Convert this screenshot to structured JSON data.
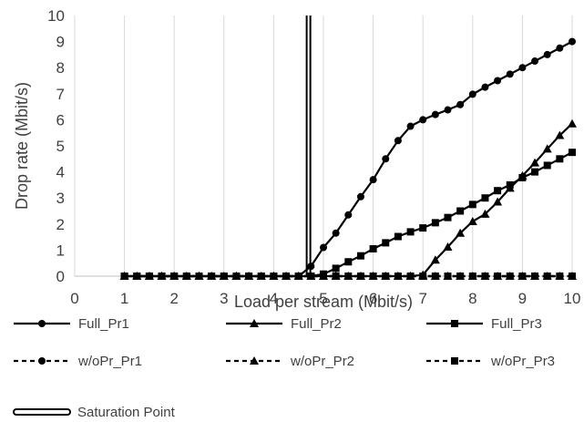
{
  "chart_data": {
    "type": "line",
    "title": "",
    "xlabel": "Load per stream (Mbit/s)",
    "ylabel": "Drop rate (Mbit/s)",
    "xlim": [
      0,
      10
    ],
    "ylim": [
      0,
      10
    ],
    "xticks": [
      "0",
      "1",
      "2",
      "3",
      "4",
      "5",
      "6",
      "7",
      "8",
      "9",
      "10"
    ],
    "yticks": [
      "0",
      "1",
      "2",
      "3",
      "4",
      "5",
      "6",
      "7",
      "8",
      "9",
      "10"
    ],
    "grid": "vertical",
    "legend_position": "bottom",
    "series": [
      {
        "name": "Full_Pr1",
        "marker": "circle",
        "style": "solid",
        "x": [
          1,
          1.25,
          1.5,
          1.75,
          2,
          2.25,
          2.5,
          2.75,
          3,
          3.25,
          3.5,
          3.75,
          4,
          4.25,
          4.5,
          4.75,
          5,
          5.25,
          5.5,
          5.75,
          6,
          6.25,
          6.5,
          6.75,
          7,
          7.25,
          7.5,
          7.75,
          8,
          8.25,
          8.5,
          8.75,
          9,
          9.25,
          9.5,
          9.75,
          10
        ],
        "y": [
          0,
          0,
          0,
          0,
          0,
          0,
          0,
          0,
          0,
          0,
          0,
          0,
          0,
          0,
          0,
          0.38,
          1.1,
          1.65,
          2.35,
          3.05,
          3.7,
          4.5,
          5.2,
          5.75,
          6.0,
          6.2,
          6.38,
          6.58,
          6.98,
          7.25,
          7.5,
          7.75,
          8.0,
          8.25,
          8.5,
          8.75,
          9.0
        ]
      },
      {
        "name": "Full_Pr2",
        "marker": "triangle",
        "style": "solid",
        "x": [
          1,
          1.25,
          1.5,
          1.75,
          2,
          2.25,
          2.5,
          2.75,
          3,
          3.25,
          3.5,
          3.75,
          4,
          4.25,
          4.5,
          4.75,
          5,
          5.25,
          5.5,
          5.75,
          6,
          6.25,
          6.5,
          6.75,
          7,
          7.25,
          7.5,
          7.75,
          8,
          8.25,
          8.5,
          8.75,
          9,
          9.25,
          9.5,
          9.75,
          10
        ],
        "y": [
          0,
          0,
          0,
          0,
          0,
          0,
          0,
          0,
          0,
          0,
          0,
          0,
          0,
          0,
          0,
          0,
          0,
          0,
          0,
          0,
          0,
          0,
          0,
          0,
          0.05,
          0.62,
          1.12,
          1.65,
          2.1,
          2.38,
          2.85,
          3.38,
          3.85,
          4.35,
          4.88,
          5.4,
          5.85
        ]
      },
      {
        "name": "Full_Pr3",
        "marker": "square",
        "style": "solid",
        "x": [
          1,
          1.25,
          1.5,
          1.75,
          2,
          2.25,
          2.5,
          2.75,
          3,
          3.25,
          3.5,
          3.75,
          4,
          4.25,
          4.5,
          4.75,
          5,
          5.25,
          5.5,
          5.75,
          6,
          6.25,
          6.5,
          6.75,
          7,
          7.25,
          7.5,
          7.75,
          8,
          8.25,
          8.5,
          8.75,
          9,
          9.25,
          9.5,
          9.75,
          10
        ],
        "y": [
          0,
          0,
          0,
          0,
          0,
          0,
          0,
          0,
          0,
          0,
          0,
          0,
          0,
          0,
          0,
          0,
          0.08,
          0.3,
          0.55,
          0.78,
          1.05,
          1.28,
          1.52,
          1.7,
          1.85,
          2.05,
          2.25,
          2.5,
          2.75,
          3.0,
          3.28,
          3.5,
          3.78,
          4.0,
          4.25,
          4.5,
          4.75
        ]
      },
      {
        "name": "w/oPr_Pr1",
        "marker": "circle",
        "style": "dashed",
        "x": [
          1,
          1.25,
          1.5,
          1.75,
          2,
          2.25,
          2.5,
          2.75,
          3,
          3.25,
          3.5,
          3.75,
          4,
          4.25,
          4.5,
          4.75,
          5,
          5.25,
          5.5,
          5.75,
          6,
          6.25,
          6.5,
          6.75,
          7,
          7.25,
          7.5,
          7.75,
          8,
          8.25,
          8.5,
          8.75,
          9,
          9.25,
          9.5,
          9.75,
          10
        ],
        "y": [
          0,
          0,
          0,
          0,
          0,
          0,
          0,
          0,
          0,
          0,
          0,
          0,
          0,
          0,
          0,
          0,
          0,
          0,
          0,
          0,
          0,
          0,
          0,
          0,
          0,
          0,
          0,
          0,
          0,
          0,
          0,
          0,
          0,
          0,
          0,
          0,
          0
        ]
      },
      {
        "name": "w/oPr_Pr2",
        "marker": "triangle",
        "style": "dashed",
        "x": [
          1,
          1.25,
          1.5,
          1.75,
          2,
          2.25,
          2.5,
          2.75,
          3,
          3.25,
          3.5,
          3.75,
          4,
          4.25,
          4.5,
          4.75,
          5,
          5.25,
          5.5,
          5.75,
          6,
          6.25,
          6.5,
          6.75,
          7,
          7.25,
          7.5,
          7.75,
          8,
          8.25,
          8.5,
          8.75,
          9,
          9.25,
          9.5,
          9.75,
          10
        ],
        "y": [
          0,
          0,
          0,
          0,
          0,
          0,
          0,
          0,
          0,
          0,
          0,
          0,
          0,
          0,
          0,
          0,
          0,
          0,
          0,
          0,
          0,
          0,
          0,
          0,
          0,
          0,
          0,
          0,
          0,
          0,
          0,
          0,
          0,
          0,
          0,
          0,
          0
        ]
      },
      {
        "name": "w/oPr_Pr3",
        "marker": "square",
        "style": "dashed",
        "x": [
          1,
          1.25,
          1.5,
          1.75,
          2,
          2.25,
          2.5,
          2.75,
          3,
          3.25,
          3.5,
          3.75,
          4,
          4.25,
          4.5,
          4.75,
          5,
          5.25,
          5.5,
          5.75,
          6,
          6.25,
          6.5,
          6.75,
          7,
          7.25,
          7.5,
          7.75,
          8,
          8.25,
          8.5,
          8.75,
          9,
          9.25,
          9.5,
          9.75,
          10
        ],
        "y": [
          0,
          0,
          0,
          0,
          0,
          0,
          0,
          0,
          0,
          0,
          0,
          0,
          0,
          0,
          0,
          0,
          0,
          0,
          0,
          0,
          0,
          0,
          0,
          0,
          0,
          0,
          0,
          0,
          0,
          0,
          0,
          0,
          0,
          0,
          0,
          0,
          0
        ]
      }
    ],
    "reference_lines": [
      {
        "name": "Saturation Point",
        "orientation": "vertical",
        "x": 4.7,
        "style": "double"
      }
    ]
  },
  "colors": {
    "series": "#000000",
    "grid": "#d9d9d9",
    "text": "#404040"
  }
}
